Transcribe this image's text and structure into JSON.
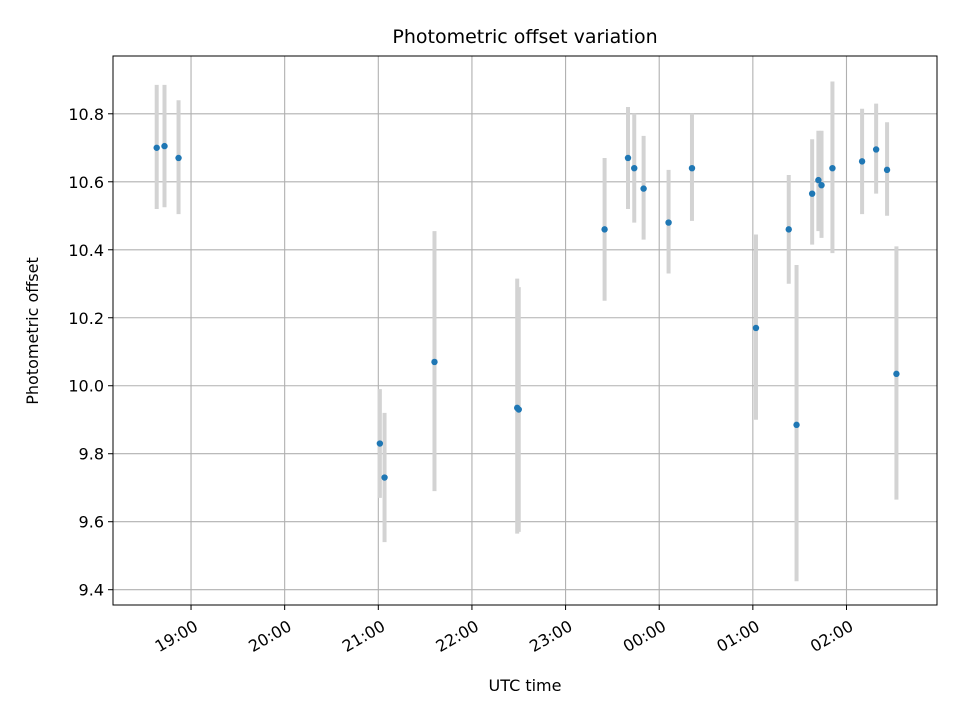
{
  "chart_data": {
    "type": "scatter",
    "title": "Photometric offset variation",
    "xlabel": "UTC time",
    "ylabel": "Photometric offset",
    "x_axis": "time (UTC, spanning midnight; earlier day before 00:00, following day after)",
    "xlim": [
      "18:10",
      "02:58"
    ],
    "ylim": [
      9.355,
      10.97
    ],
    "x_ticks": [
      "19:00",
      "20:00",
      "21:00",
      "22:00",
      "23:00",
      "00:00",
      "01:00",
      "02:00"
    ],
    "y_ticks": [
      "9.4",
      "9.6",
      "9.8",
      "10.0",
      "10.2",
      "10.4",
      "10.6",
      "10.8"
    ],
    "y_tick_values": [
      9.4,
      9.6,
      9.8,
      10.0,
      10.2,
      10.4,
      10.6,
      10.8
    ],
    "grid": true,
    "marker_color": "#1f77b4",
    "errorbar_color": "#d3d3d3",
    "points": [
      {
        "t": "18:38",
        "y": 10.7,
        "lo": 10.52,
        "hi": 10.885
      },
      {
        "t": "18:43",
        "y": 10.705,
        "lo": 10.525,
        "hi": 10.885
      },
      {
        "t": "18:52",
        "y": 10.67,
        "lo": 10.505,
        "hi": 10.84
      },
      {
        "t": "21:01",
        "y": 9.83,
        "lo": 9.67,
        "hi": 9.99
      },
      {
        "t": "21:04",
        "y": 9.73,
        "lo": 9.54,
        "hi": 9.92
      },
      {
        "t": "21:36",
        "y": 10.07,
        "lo": 9.69,
        "hi": 10.455
      },
      {
        "t": "22:29",
        "y": 9.935,
        "lo": 9.565,
        "hi": 10.315
      },
      {
        "t": "22:30",
        "y": 9.93,
        "lo": 9.57,
        "hi": 10.29
      },
      {
        "t": "23:25",
        "y": 10.46,
        "lo": 10.25,
        "hi": 10.67
      },
      {
        "t": "23:40",
        "y": 10.67,
        "lo": 10.52,
        "hi": 10.82
      },
      {
        "t": "23:44",
        "y": 10.64,
        "lo": 10.48,
        "hi": 10.8
      },
      {
        "t": "23:50",
        "y": 10.58,
        "lo": 10.43,
        "hi": 10.735
      },
      {
        "t": "00:06",
        "y": 10.48,
        "lo": 10.33,
        "hi": 10.635
      },
      {
        "t": "00:21",
        "y": 10.64,
        "lo": 10.485,
        "hi": 10.8
      },
      {
        "t": "01:02",
        "y": 10.17,
        "lo": 9.9,
        "hi": 10.445
      },
      {
        "t": "01:23",
        "y": 10.46,
        "lo": 10.3,
        "hi": 10.62
      },
      {
        "t": "01:28",
        "y": 9.885,
        "lo": 9.425,
        "hi": 10.355
      },
      {
        "t": "01:38",
        "y": 10.565,
        "lo": 10.415,
        "hi": 10.725
      },
      {
        "t": "01:42",
        "y": 10.605,
        "lo": 10.455,
        "hi": 10.75
      },
      {
        "t": "01:44",
        "y": 10.59,
        "lo": 10.435,
        "hi": 10.75
      },
      {
        "t": "01:51",
        "y": 10.64,
        "lo": 10.39,
        "hi": 10.895
      },
      {
        "t": "02:10",
        "y": 10.66,
        "lo": 10.505,
        "hi": 10.815
      },
      {
        "t": "02:19",
        "y": 10.695,
        "lo": 10.565,
        "hi": 10.83
      },
      {
        "t": "02:26",
        "y": 10.635,
        "lo": 10.5,
        "hi": 10.775
      },
      {
        "t": "02:32",
        "y": 10.035,
        "lo": 9.665,
        "hi": 10.41
      }
    ]
  }
}
